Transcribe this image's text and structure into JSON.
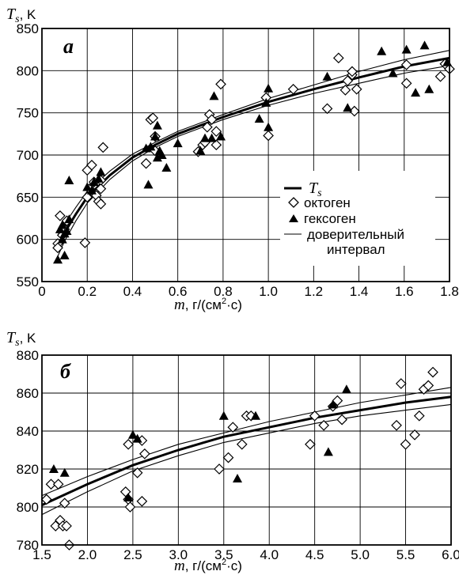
{
  "chart_data": [
    {
      "panel": "а",
      "type": "scatter",
      "ylabel_symbol": "T",
      "ylabel_sub": "s",
      "ylabel_unit": ", K",
      "xlabel_symbol": "m",
      "xlabel_unit": ", г/(см",
      "xlabel_sup": "2",
      "xlabel_tail": "·с)",
      "xlim": [
        0,
        1.8
      ],
      "ylim": [
        550,
        850
      ],
      "x_ticks": [
        "0",
        "0.2",
        "0.4",
        "0.6",
        "0.8",
        "1.0",
        "1.2",
        "1.4",
        "1.6",
        "1.8"
      ],
      "y_ticks": [
        "550",
        "600",
        "650",
        "700",
        "750",
        "800",
        "850"
      ],
      "x_tick_values": [
        0,
        0.2,
        0.4,
        0.6,
        0.8,
        1.0,
        1.2,
        1.4,
        1.6,
        1.8
      ],
      "y_tick_values": [
        550,
        600,
        650,
        700,
        750,
        800,
        850
      ],
      "grid": true,
      "legend_placement": "right",
      "legend": [
        {
          "symbol": "line-thick",
          "label": "T",
          "label_sub": "s"
        },
        {
          "symbol": "diamond",
          "label": "октоген"
        },
        {
          "symbol": "triangle",
          "label": "гексоген"
        },
        {
          "symbol": "line-thin",
          "label": "доверительный",
          "label2": "интервал"
        }
      ],
      "series": [
        {
          "name": "октоген",
          "marker": "diamond",
          "points": [
            [
              0.07,
              595
            ],
            [
              0.07,
              590
            ],
            [
              0.08,
              628
            ],
            [
              0.09,
              605
            ],
            [
              0.1,
              612
            ],
            [
              0.11,
              622
            ],
            [
              0.19,
              596
            ],
            [
              0.2,
              682
            ],
            [
              0.2,
              650
            ],
            [
              0.21,
              660
            ],
            [
              0.22,
              688
            ],
            [
              0.23,
              668
            ],
            [
              0.24,
              652
            ],
            [
              0.25,
              645
            ],
            [
              0.26,
              670
            ],
            [
              0.26,
              660
            ],
            [
              0.27,
              709
            ],
            [
              0.26,
              642
            ],
            [
              0.46,
              690
            ],
            [
              0.48,
              742
            ],
            [
              0.49,
              744
            ],
            [
              0.5,
              722
            ],
            [
              0.5,
              705
            ],
            [
              0.69,
              704
            ],
            [
              0.71,
              712
            ],
            [
              0.72,
              715
            ],
            [
              0.73,
              733
            ],
            [
              0.74,
              748
            ],
            [
              0.75,
              742
            ],
            [
              0.77,
              728
            ],
            [
              0.77,
              712
            ],
            [
              0.79,
              784
            ],
            [
              0.99,
              768
            ],
            [
              1.0,
              723
            ],
            [
              1.11,
              778
            ],
            [
              1.26,
              755
            ],
            [
              1.31,
              815
            ],
            [
              1.34,
              777
            ],
            [
              1.35,
              788
            ],
            [
              1.37,
              795
            ],
            [
              1.37,
              799
            ],
            [
              1.38,
              752
            ],
            [
              1.39,
              778
            ],
            [
              1.61,
              785
            ],
            [
              1.61,
              807
            ],
            [
              1.76,
              793
            ],
            [
              1.78,
              808
            ],
            [
              1.8,
              802
            ]
          ]
        },
        {
          "name": "гексоген",
          "marker": "triangle",
          "points": [
            [
              0.07,
              576
            ],
            [
              0.08,
              612
            ],
            [
              0.09,
              600
            ],
            [
              0.09,
              617
            ],
            [
              0.1,
              581
            ],
            [
              0.1,
              607
            ],
            [
              0.11,
              610
            ],
            [
              0.12,
              670
            ],
            [
              0.12,
              624
            ],
            [
              0.2,
              662
            ],
            [
              0.22,
              658
            ],
            [
              0.23,
              668
            ],
            [
              0.25,
              672
            ],
            [
              0.26,
              680
            ],
            [
              0.46,
              708
            ],
            [
              0.47,
              665
            ],
            [
              0.48,
              710
            ],
            [
              0.5,
              722
            ],
            [
              0.51,
              735
            ],
            [
              0.51,
              697
            ],
            [
              0.52,
              705
            ],
            [
              0.53,
              700
            ],
            [
              0.55,
              685
            ],
            [
              0.6,
              714
            ],
            [
              0.7,
              705
            ],
            [
              0.72,
              720
            ],
            [
              0.75,
              720
            ],
            [
              0.76,
              770
            ],
            [
              0.79,
              722
            ],
            [
              0.96,
              743
            ],
            [
              0.99,
              762
            ],
            [
              1.0,
              779
            ],
            [
              1.0,
              733
            ],
            [
              1.26,
              793
            ],
            [
              1.35,
              756
            ],
            [
              1.5,
              823
            ],
            [
              1.55,
              797
            ],
            [
              1.61,
              825
            ],
            [
              1.65,
              774
            ],
            [
              1.69,
              830
            ],
            [
              1.71,
              778
            ],
            [
              1.79,
              810
            ]
          ]
        }
      ],
      "fit_curves": [
        {
          "kind": "T_s",
          "x": [
            0.07,
            0.1,
            0.15,
            0.2,
            0.3,
            0.4,
            0.5,
            0.6,
            0.8,
            1.0,
            1.2,
            1.4,
            1.6,
            1.8
          ],
          "y": [
            592,
            608,
            630,
            650,
            676,
            697,
            712,
            725,
            745,
            763,
            778,
            792,
            805,
            815
          ]
        },
        {
          "kind": "upper",
          "x": [
            0.07,
            0.1,
            0.15,
            0.2,
            0.3,
            0.4,
            0.5,
            0.6,
            0.8,
            1.0,
            1.2,
            1.4,
            1.6,
            1.8
          ],
          "y": [
            605,
            618,
            638,
            657,
            681,
            701,
            715,
            728,
            748,
            767,
            783,
            799,
            813,
            824
          ]
        },
        {
          "kind": "lower",
          "x": [
            0.07,
            0.1,
            0.15,
            0.2,
            0.3,
            0.4,
            0.5,
            0.6,
            0.8,
            1.0,
            1.2,
            1.4,
            1.6,
            1.8
          ],
          "y": [
            580,
            598,
            622,
            643,
            671,
            693,
            709,
            722,
            742,
            759,
            773,
            785,
            797,
            806
          ]
        }
      ]
    },
    {
      "panel": "б",
      "type": "scatter",
      "ylabel_symbol": "T",
      "ylabel_sub": "s",
      "ylabel_unit": ", K",
      "xlabel_symbol": "m",
      "xlabel_unit": ", г/(см",
      "xlabel_sup": "2",
      "xlabel_tail": "·с)",
      "xlim": [
        1.5,
        6.0
      ],
      "ylim": [
        780,
        880
      ],
      "x_ticks": [
        "1.5",
        "2.0",
        "2.5",
        "3.0",
        "3.5",
        "4.0",
        "4.5",
        "5.0",
        "5.5",
        "6.0"
      ],
      "y_ticks": [
        "780",
        "800",
        "820",
        "840",
        "860",
        "880"
      ],
      "x_tick_values": [
        1.5,
        2.0,
        2.5,
        3.0,
        3.5,
        4.0,
        4.5,
        5.0,
        5.5,
        6.0
      ],
      "y_tick_values": [
        780,
        800,
        820,
        840,
        860,
        880
      ],
      "grid": true,
      "series": [
        {
          "name": "октоген",
          "marker": "diamond",
          "points": [
            [
              1.55,
              804
            ],
            [
              1.6,
              812
            ],
            [
              1.65,
              790
            ],
            [
              1.68,
              812
            ],
            [
              1.7,
              793
            ],
            [
              1.73,
              790
            ],
            [
              1.75,
              802
            ],
            [
              1.77,
              790
            ],
            [
              1.8,
              780
            ],
            [
              2.42,
              808
            ],
            [
              2.45,
              833
            ],
            [
              2.45,
              804
            ],
            [
              2.47,
              800
            ],
            [
              2.55,
              818
            ],
            [
              2.6,
              835
            ],
            [
              2.6,
              803
            ],
            [
              2.63,
              828
            ],
            [
              3.45,
              820
            ],
            [
              3.55,
              826
            ],
            [
              3.6,
              842
            ],
            [
              3.7,
              833
            ],
            [
              3.75,
              848
            ],
            [
              3.8,
              848
            ],
            [
              4.45,
              833
            ],
            [
              4.5,
              848
            ],
            [
              4.6,
              843
            ],
            [
              4.7,
              853
            ],
            [
              4.75,
              856
            ],
            [
              4.8,
              846
            ],
            [
              5.4,
              843
            ],
            [
              5.45,
              865
            ],
            [
              5.5,
              833
            ],
            [
              5.6,
              838
            ],
            [
              5.65,
              848
            ],
            [
              5.7,
              862
            ],
            [
              5.75,
              864
            ],
            [
              5.8,
              871
            ]
          ]
        },
        {
          "name": "гексоген",
          "marker": "triangle",
          "points": [
            [
              1.63,
              820
            ],
            [
              1.75,
              818
            ],
            [
              2.45,
              805
            ],
            [
              2.5,
              838
            ],
            [
              2.55,
              836
            ],
            [
              3.5,
              848
            ],
            [
              3.65,
              815
            ],
            [
              3.85,
              848
            ],
            [
              4.65,
              829
            ],
            [
              4.7,
              854
            ],
            [
              4.85,
              862
            ]
          ]
        }
      ],
      "fit_curves": [
        {
          "kind": "T_s",
          "x": [
            1.5,
            2.0,
            2.5,
            3.0,
            3.5,
            4.0,
            4.5,
            5.0,
            5.5,
            6.0
          ],
          "y": [
            801,
            812,
            822,
            830,
            837,
            842,
            847,
            851,
            855,
            858
          ]
        },
        {
          "kind": "upper",
          "x": [
            1.5,
            2.0,
            2.5,
            3.0,
            3.5,
            4.0,
            4.5,
            5.0,
            5.5,
            6.0
          ],
          "y": [
            806,
            816,
            825,
            833,
            839,
            845,
            850,
            855,
            859,
            863
          ]
        },
        {
          "kind": "lower",
          "x": [
            1.5,
            2.0,
            2.5,
            3.0,
            3.5,
            4.0,
            4.5,
            5.0,
            5.5,
            6.0
          ],
          "y": [
            796,
            808,
            819,
            827,
            834,
            839,
            844,
            848,
            851,
            854
          ]
        }
      ]
    }
  ]
}
